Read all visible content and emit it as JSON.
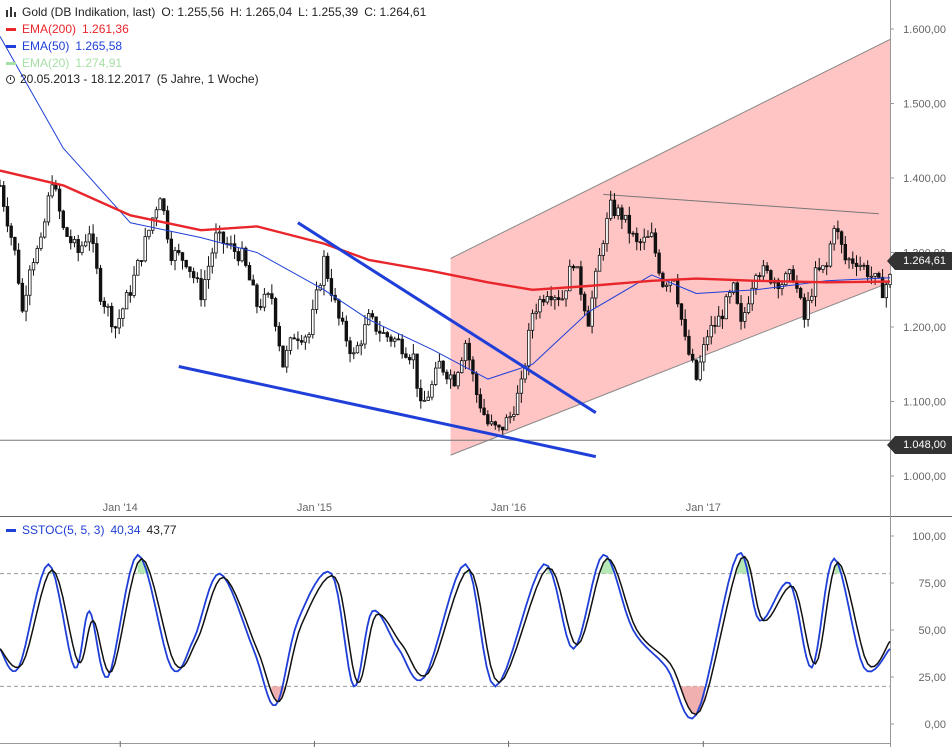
{
  "header": {
    "instrument": "Gold (DB Indikation, last)",
    "open": "O: 1.255,56",
    "high": "H: 1.265,04",
    "low": "L: 1.255,39",
    "close": "C: 1.264,61",
    "period": "20.05.2013 - 18.12.2017",
    "period_detail": "(5 Jahre, 1 Woche)"
  },
  "indicators": [
    {
      "name": "EMA(200)",
      "value": "1.261,36",
      "color": "#e8262b"
    },
    {
      "name": "EMA(50)",
      "value": "1.265,58",
      "color": "#1f3fd8"
    },
    {
      "name": "EMA(20)",
      "value": "1.274,91",
      "color": "#a6e0a6"
    }
  ],
  "price_tags": {
    "last": "1.264,61",
    "support": "1.048,00"
  },
  "stoch_legend": {
    "name": "SSTOC(5, 5, 3)",
    "k": "40,34",
    "d": "43,77"
  },
  "colors": {
    "candle": "#111111",
    "channel_fill": "#ffc4c4",
    "channel_line": "#888888",
    "ema200": "#e8262b",
    "ema50": "#1f3fd8",
    "trendline": "#1f3fd8",
    "stoch_k": "#1f3fd8",
    "stoch_d": "#111111",
    "overbought": "#b6e8b6",
    "oversold": "#f0b0b0"
  },
  "chart_data": [
    {
      "type": "candlestick",
      "title": "Gold (DB Indikation, last)",
      "x_ticks": [
        "Jan '14",
        "Jan '15",
        "Jan '16",
        "Jan '17"
      ],
      "y_ticks": [
        "1.000,00",
        "1.100,00",
        "1.200,00",
        "1.300,00",
        "1.400,00",
        "1.500,00",
        "1.600,00"
      ],
      "ylim": [
        955,
        1630
      ],
      "x_range": [
        "2013-05-20",
        "2017-12-18"
      ],
      "grid": false,
      "close_path": [
        [
          "2013-05-20",
          1390
        ],
        [
          "2013-06-20",
          1290
        ],
        [
          "2013-07-01",
          1220
        ],
        [
          "2013-07-15",
          1285
        ],
        [
          "2013-08-05",
          1310
        ],
        [
          "2013-08-26",
          1400
        ],
        [
          "2013-09-16",
          1330
        ],
        [
          "2013-10-14",
          1300
        ],
        [
          "2013-11-04",
          1330
        ],
        [
          "2013-11-25",
          1245
        ],
        [
          "2013-12-23",
          1200
        ],
        [
          "2014-01-20",
          1250
        ],
        [
          "2014-02-24",
          1330
        ],
        [
          "2014-03-17",
          1380
        ],
        [
          "2014-04-07",
          1300
        ],
        [
          "2014-05-05",
          1290
        ],
        [
          "2014-06-02",
          1245
        ],
        [
          "2014-06-30",
          1320
        ],
        [
          "2014-07-21",
          1310
        ],
        [
          "2014-08-18",
          1295
        ],
        [
          "2014-09-15",
          1230
        ],
        [
          "2014-10-13",
          1240
        ],
        [
          "2014-11-03",
          1150
        ],
        [
          "2014-11-24",
          1190
        ],
        [
          "2014-12-22",
          1190
        ],
        [
          "2015-01-19",
          1290
        ],
        [
          "2015-02-16",
          1210
        ],
        [
          "2015-03-16",
          1160
        ],
        [
          "2015-04-13",
          1210
        ],
        [
          "2015-05-11",
          1190
        ],
        [
          "2015-06-08",
          1180
        ],
        [
          "2015-07-06",
          1160
        ],
        [
          "2015-07-20",
          1090
        ],
        [
          "2015-08-10",
          1120
        ],
        [
          "2015-08-24",
          1150
        ],
        [
          "2015-09-21",
          1130
        ],
        [
          "2015-10-12",
          1180
        ],
        [
          "2015-11-02",
          1110
        ],
        [
          "2015-11-23",
          1070
        ],
        [
          "2015-12-14",
          1060
        ],
        [
          "2016-01-04",
          1080
        ],
        [
          "2016-01-25",
          1120
        ],
        [
          "2016-02-15",
          1220
        ],
        [
          "2016-03-14",
          1250
        ],
        [
          "2016-04-11",
          1240
        ],
        [
          "2016-05-02",
          1290
        ],
        [
          "2016-05-30",
          1210
        ],
        [
          "2016-06-27",
          1320
        ],
        [
          "2016-07-11",
          1360
        ],
        [
          "2016-08-01",
          1350
        ],
        [
          "2016-08-29",
          1310
        ],
        [
          "2016-09-26",
          1320
        ],
        [
          "2016-10-17",
          1260
        ],
        [
          "2016-11-07",
          1270
        ],
        [
          "2016-11-28",
          1180
        ],
        [
          "2016-12-19",
          1130
        ],
        [
          "2017-01-09",
          1190
        ],
        [
          "2017-01-30",
          1210
        ],
        [
          "2017-02-27",
          1250
        ],
        [
          "2017-03-13",
          1200
        ],
        [
          "2017-04-10",
          1280
        ],
        [
          "2017-05-01",
          1270
        ],
        [
          "2017-05-29",
          1260
        ],
        [
          "2017-06-19",
          1270
        ],
        [
          "2017-07-10",
          1210
        ],
        [
          "2017-07-31",
          1270
        ],
        [
          "2017-08-21",
          1280
        ],
        [
          "2017-09-04",
          1340
        ],
        [
          "2017-09-25",
          1290
        ],
        [
          "2017-10-16",
          1290
        ],
        [
          "2017-11-06",
          1275
        ],
        [
          "2017-12-04",
          1250
        ],
        [
          "2017-12-18",
          1265
        ]
      ],
      "series": [
        {
          "name": "EMA(200)",
          "values": [
            [
              "2013-05-20",
              1410
            ],
            [
              "2013-09-16",
              1390
            ],
            [
              "2014-01-20",
              1350
            ],
            [
              "2014-06-02",
              1330
            ],
            [
              "2014-09-15",
              1335
            ],
            [
              "2015-01-19",
              1312
            ],
            [
              "2015-04-13",
              1290
            ],
            [
              "2015-08-10",
              1275
            ],
            [
              "2015-11-23",
              1260
            ],
            [
              "2016-02-15",
              1250
            ],
            [
              "2016-05-30",
              1255
            ],
            [
              "2016-09-26",
              1262
            ],
            [
              "2016-12-19",
              1265
            ],
            [
              "2017-04-10",
              1262
            ],
            [
              "2017-08-21",
              1260
            ],
            [
              "2017-12-18",
              1261
            ]
          ]
        },
        {
          "name": "EMA(50)",
          "values": [
            [
              "2013-05-20",
              1590
            ],
            [
              "2013-09-16",
              1440
            ],
            [
              "2014-01-20",
              1340
            ],
            [
              "2014-06-02",
              1320
            ],
            [
              "2014-09-15",
              1300
            ],
            [
              "2015-01-19",
              1250
            ],
            [
              "2015-04-13",
              1210
            ],
            [
              "2015-08-10",
              1170
            ],
            [
              "2015-11-23",
              1130
            ],
            [
              "2016-02-15",
              1150
            ],
            [
              "2016-05-30",
              1220
            ],
            [
              "2016-09-26",
              1270
            ],
            [
              "2016-12-19",
              1245
            ],
            [
              "2017-04-10",
              1250
            ],
            [
              "2017-08-21",
              1262
            ],
            [
              "2017-12-18",
              1266
            ]
          ]
        }
      ],
      "drawings": {
        "channel_upper": [
          [
            "2015-09-14",
            1292
          ],
          [
            "2017-12-18",
            1586
          ]
        ],
        "channel_lower": [
          [
            "2015-09-14",
            1028
          ],
          [
            "2017-12-18",
            1260
          ]
        ],
        "resistance": [
          [
            "2016-06-27",
            1378
          ],
          [
            "2017-11-27",
            1352
          ]
        ],
        "downtrend_upper": [
          [
            "2014-12-01",
            1340
          ],
          [
            "2016-06-13",
            1085
          ]
        ],
        "downtrend_lower": [
          [
            "2014-04-21",
            1147
          ],
          [
            "2016-06-13",
            1026
          ]
        ],
        "support_level": 1048
      }
    },
    {
      "type": "line",
      "title": "SSTOC(5, 5, 3)",
      "y_ticks": [
        "0,00",
        "25,00",
        "50,00",
        "75,00",
        "100,00"
      ],
      "ylim": [
        -5,
        105
      ],
      "bands": [
        20,
        80
      ],
      "series": [
        {
          "name": "%K",
          "values": [
            [
              "2013-05-20",
              40
            ],
            [
              "2013-06-24",
              30
            ],
            [
              "2013-08-19",
              85
            ],
            [
              "2013-10-07",
              30
            ],
            [
              "2013-11-04",
              60
            ],
            [
              "2013-12-09",
              25
            ],
            [
              "2014-02-03",
              90
            ],
            [
              "2014-04-07",
              30
            ],
            [
              "2014-05-19",
              45
            ],
            [
              "2014-07-07",
              80
            ],
            [
              "2014-09-08",
              40
            ],
            [
              "2014-10-20",
              10
            ],
            [
              "2014-12-01",
              55
            ],
            [
              "2015-02-02",
              80
            ],
            [
              "2015-03-16",
              20
            ],
            [
              "2015-04-20",
              60
            ],
            [
              "2015-06-08",
              40
            ],
            [
              "2015-07-27",
              25
            ],
            [
              "2015-10-12",
              85
            ],
            [
              "2015-12-07",
              20
            ],
            [
              "2016-03-07",
              85
            ],
            [
              "2016-05-02",
              40
            ],
            [
              "2016-06-27",
              90
            ],
            [
              "2016-08-22",
              50
            ],
            [
              "2016-10-24",
              30
            ],
            [
              "2016-12-19",
              5
            ],
            [
              "2017-03-06",
              90
            ],
            [
              "2017-04-17",
              55
            ],
            [
              "2017-06-12",
              75
            ],
            [
              "2017-07-24",
              30
            ],
            [
              "2017-09-04",
              88
            ],
            [
              "2017-10-30",
              30
            ],
            [
              "2017-12-18",
              40
            ]
          ]
        },
        {
          "name": "%D",
          "values": [
            [
              "2013-05-20",
              40
            ],
            [
              "2013-07-01",
              32
            ],
            [
              "2013-08-26",
              82
            ],
            [
              "2013-10-14",
              33
            ],
            [
              "2013-11-11",
              55
            ],
            [
              "2013-12-16",
              28
            ],
            [
              "2014-02-10",
              88
            ],
            [
              "2014-04-14",
              32
            ],
            [
              "2014-05-26",
              45
            ],
            [
              "2014-07-14",
              78
            ],
            [
              "2014-09-15",
              40
            ],
            [
              "2014-10-27",
              12
            ],
            [
              "2014-12-08",
              53
            ],
            [
              "2015-02-09",
              78
            ],
            [
              "2015-03-23",
              22
            ],
            [
              "2015-04-27",
              58
            ],
            [
              "2015-06-15",
              42
            ],
            [
              "2015-08-03",
              27
            ],
            [
              "2015-10-19",
              82
            ],
            [
              "2015-12-14",
              22
            ],
            [
              "2016-03-14",
              83
            ],
            [
              "2016-05-09",
              42
            ],
            [
              "2016-07-04",
              88
            ],
            [
              "2016-08-29",
              50
            ],
            [
              "2016-10-31",
              32
            ],
            [
              "2016-12-26",
              7
            ],
            [
              "2017-03-13",
              88
            ],
            [
              "2017-04-24",
              55
            ],
            [
              "2017-06-19",
              73
            ],
            [
              "2017-07-31",
              32
            ],
            [
              "2017-09-11",
              86
            ],
            [
              "2017-11-06",
              32
            ],
            [
              "2017-12-18",
              44
            ]
          ]
        }
      ]
    }
  ]
}
